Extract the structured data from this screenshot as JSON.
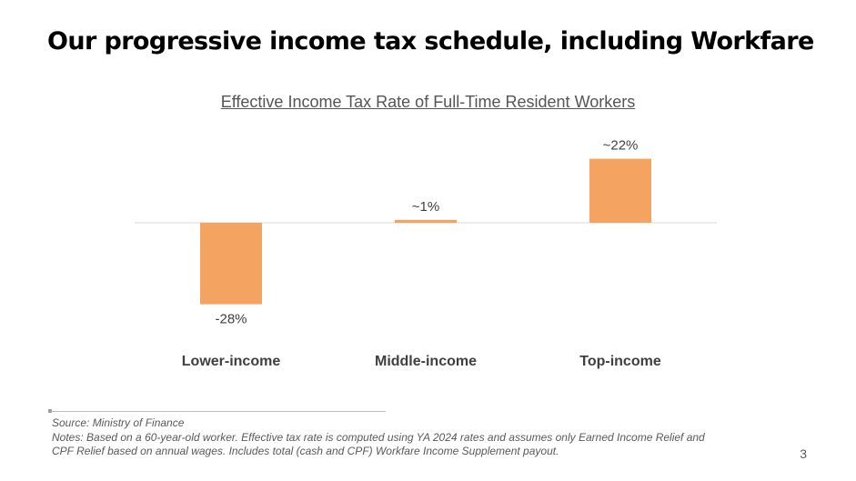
{
  "slide": {
    "title": "Our progressive income tax schedule, including Workfare",
    "page_number": "3"
  },
  "footnotes": {
    "source": "Source: Ministry of Finance",
    "notes_line1": "Notes: Based on a 60-year-old worker. Effective tax rate is computed using YA 2024 rates and assumes only Earned Income Relief and",
    "notes_line2": "CPF Relief based on annual wages. Includes total (cash and CPF) Workfare Income Supplement payout."
  },
  "colors": {
    "bar": "#f4a460",
    "baseline": "#d9d9d9"
  },
  "chart_data": {
    "type": "bar",
    "title": "Effective Income Tax Rate of Full-Time Resident Workers",
    "categories": [
      "Lower-income",
      "Middle-income",
      "Top-income"
    ],
    "values": [
      -28,
      1,
      22
    ],
    "data_labels": [
      "-28%",
      "~1%",
      "~22%"
    ],
    "xlabel": "",
    "ylabel": "",
    "unit": "%",
    "ylim": [
      -30,
      25
    ],
    "grid": false,
    "legend": "none"
  }
}
